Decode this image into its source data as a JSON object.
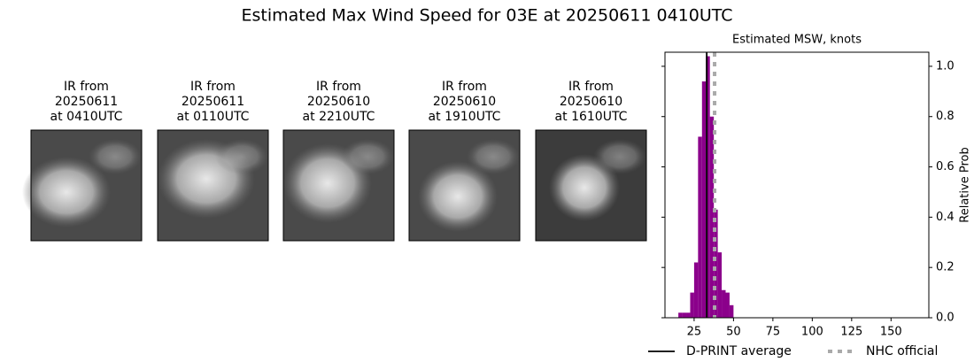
{
  "title": "Estimated Max Wind Speed for 03E at 20250611 0410UTC",
  "panels": [
    {
      "label": [
        "IR from",
        "20250611",
        "at 0410UTC"
      ]
    },
    {
      "label": [
        "IR from",
        "20250611",
        "at 0110UTC"
      ]
    },
    {
      "label": [
        "IR from",
        "20250610",
        "at 2210UTC"
      ]
    },
    {
      "label": [
        "IR from",
        "20250610",
        "at 1910UTC"
      ]
    },
    {
      "label": [
        "IR from",
        "20250610",
        "at 1610UTC"
      ]
    }
  ],
  "chart_data": {
    "type": "histogram",
    "title": "Estimated MSW, knots",
    "y_label": "Relative Prob",
    "color": "#8b008b",
    "bins": [
      15,
      17.5,
      20,
      22.5,
      25,
      27.5,
      30,
      32.5,
      35,
      37.5,
      40,
      42.5,
      45,
      47.5,
      50
    ],
    "counts": [
      0.02,
      0.02,
      0.02,
      0.1,
      0.22,
      0.72,
      0.94,
      1.04,
      0.8,
      0.43,
      0.26,
      0.11,
      0.1,
      0.05
    ],
    "xlim": [
      6.5,
      174
    ],
    "xticks": [
      25,
      50,
      75,
      100,
      125,
      150
    ],
    "ylim": [
      0,
      1.056
    ],
    "yticks": [
      {
        "value": 0,
        "label": "0.0"
      },
      0.2,
      0.4,
      0.6,
      0.8,
      {
        "value": 1,
        "label": "1.0"
      }
    ],
    "lines": [
      {
        "name": "D-PRINT average",
        "x": 33,
        "color": "#000000",
        "style": "solid"
      },
      {
        "name": "NHC official",
        "x": 38,
        "color": "#aaaaaa",
        "style": "dotted"
      }
    ]
  }
}
